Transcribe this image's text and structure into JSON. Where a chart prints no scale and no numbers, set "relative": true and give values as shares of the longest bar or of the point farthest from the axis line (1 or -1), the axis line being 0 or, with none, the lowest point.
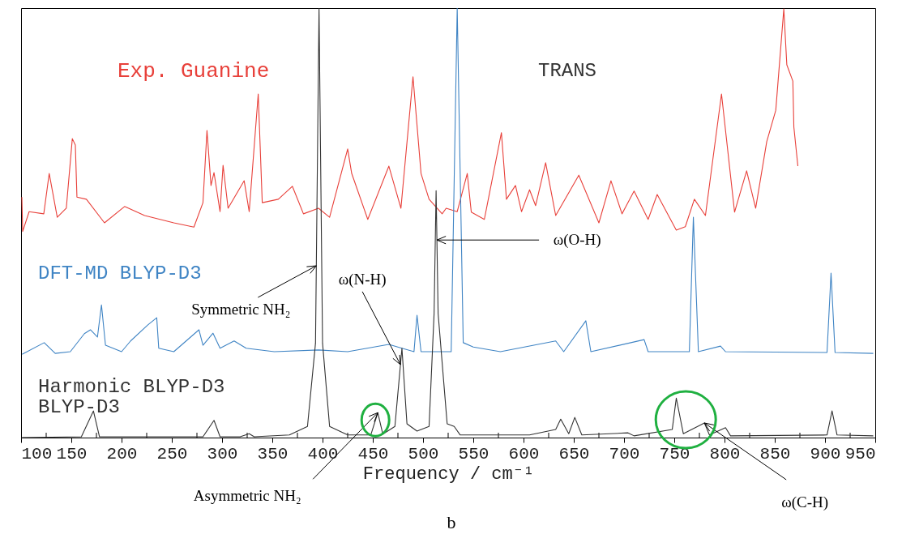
{
  "chart_data": {
    "type": "line",
    "relative": true,
    "xlabel": "Frequency / cm⁻¹",
    "xlim": [
      100,
      950
    ],
    "xticks": [
      100,
      {
        "value": 125,
        "label": null
      },
      150,
      {
        "value": 175,
        "label": null
      },
      200,
      {
        "value": 225,
        "label": null
      },
      250,
      {
        "value": 275,
        "label": null
      },
      300,
      {
        "value": 325,
        "label": null
      },
      350,
      {
        "value": 375,
        "label": null
      },
      400,
      {
        "value": 425,
        "label": null
      },
      450,
      {
        "value": 475,
        "label": null
      },
      500,
      {
        "value": 525,
        "label": null
      },
      550,
      {
        "value": 575,
        "label": null
      },
      600,
      {
        "value": 625,
        "label": null
      },
      650,
      {
        "value": 675,
        "label": null
      },
      700,
      {
        "value": 725,
        "label": null
      },
      750,
      {
        "value": 775,
        "label": null
      },
      800,
      {
        "value": 825,
        "label": null
      },
      850,
      {
        "value": 875,
        "label": null
      },
      900,
      {
        "value": 925,
        "label": null
      },
      950
    ],
    "series": [
      {
        "name": "Exp. Guanine",
        "color": "#e8403a",
        "x": [
          100.8,
          101.6,
          108,
          122.6,
          128,
          136,
          145,
          151,
          154,
          155.6,
          165,
          183,
          203,
          223,
          252,
          272,
          281,
          285,
          289,
          292,
          298,
          301,
          306,
          322,
          327,
          336,
          340,
          356,
          370,
          381,
          396,
          407,
          425,
          429,
          445,
          466,
          478,
          490,
          498,
          506,
          519,
          523,
          534,
          544,
          548,
          561,
          578,
          583,
          592,
          598,
          606,
          612,
          622,
          632,
          655,
          675,
          687,
          698,
          710,
          724,
          733,
          752,
          761,
          770,
          781,
          797,
          810,
          822,
          831,
          842,
          851,
          859,
          862,
          868,
          869,
          873
        ],
        "values": [
          0.56,
          0.48,
          0.526,
          0.521,
          0.615,
          0.513,
          0.534,
          0.696,
          0.681,
          0.56,
          0.555,
          0.5,
          0.538,
          0.517,
          0.5,
          0.49,
          0.547,
          0.715,
          0.587,
          0.617,
          0.526,
          0.634,
          0.534,
          0.598,
          0.526,
          0.8,
          0.547,
          0.555,
          0.585,
          0.521,
          0.534,
          0.513,
          0.672,
          0.615,
          0.508,
          0.632,
          0.534,
          0.84,
          0.615,
          0.555,
          0.521,
          0.534,
          0.526,
          0.615,
          0.525,
          0.508,
          0.71,
          0.555,
          0.587,
          0.526,
          0.577,
          0.54,
          0.64,
          0.517,
          0.611,
          0.5,
          0.598,
          0.521,
          0.574,
          0.508,
          0.566,
          0.483,
          0.491,
          0.555,
          0.517,
          0.8,
          0.525,
          0.621,
          0.534,
          0.689,
          0.762,
          0.998,
          0.868,
          0.83,
          0.723,
          0.632
        ]
      },
      {
        "name": "DFT-MD BLYP-D3",
        "color": "#3f84c4",
        "x": [
          101,
          123,
          134,
          149,
          163,
          169,
          176,
          180,
          184,
          200,
          209,
          226,
          235,
          237,
          252,
          277,
          281,
          291,
          298,
          312,
          324,
          352,
          396,
          425,
          466,
          479,
          491,
          494,
          498,
          523,
          528,
          534,
          540,
          550,
          577,
          632,
          640,
          662,
          667,
          720,
          724,
          765,
          769,
          774,
          796,
          801,
          902,
          906,
          910,
          948
        ],
        "values": [
          0.194,
          0.221,
          0.196,
          0.2,
          0.242,
          0.251,
          0.234,
          0.309,
          0.215,
          0.2,
          0.225,
          0.262,
          0.279,
          0.208,
          0.2,
          0.251,
          0.215,
          0.243,
          0.208,
          0.225,
          0.208,
          0.2,
          0.204,
          0.2,
          0.217,
          0.208,
          0.2,
          0.285,
          0.2,
          0.2,
          0.2,
          1.0,
          0.221,
          0.211,
          0.2,
          0.225,
          0.2,
          0.272,
          0.2,
          0.228,
          0.2,
          0.2,
          0.513,
          0.2,
          0.213,
          0.2,
          0.198,
          0.383,
          0.198,
          0.196
        ]
      },
      {
        "name": "Harmonic BLYP-D3\nBLYP-D3",
        "color": "#333333",
        "x": [
          101,
          160,
          172,
          178,
          281,
          292,
          298,
          318,
          327,
          332,
          367,
          385,
          393,
          396.5,
          400,
          407,
          425,
          448,
          455,
          460,
          472,
          479,
          484,
          494,
          506,
          511,
          513,
          515,
          524,
          531,
          537,
          606,
          632,
          637,
          645,
          651,
          658,
          704,
          710,
          748,
          752,
          759,
          780,
          785,
          801,
          806,
          902,
          907,
          912,
          948
        ],
        "values": [
          0,
          0.002,
          0.062,
          0.002,
          0.002,
          0.04,
          0.002,
          0.002,
          0.009,
          0.002,
          0.006,
          0.026,
          0.22,
          1.0,
          0.22,
          0.026,
          0.006,
          0.006,
          0.058,
          0.008,
          0.026,
          0.208,
          0.032,
          0.015,
          0.026,
          0.289,
          0.575,
          0.289,
          0.032,
          0.026,
          0.006,
          0.006,
          0.019,
          0.043,
          0.009,
          0.047,
          0.006,
          0.011,
          0.004,
          0.019,
          0.092,
          0.009,
          0.034,
          0.006,
          0.023,
          0.004,
          0.006,
          0.062,
          0.006,
          0.004
        ]
      }
    ],
    "annotations": [
      {
        "text": "Symmetric NH₂",
        "x": 393.8,
        "y": 0.4
      },
      {
        "text": "ω(N-H)",
        "x": 477.5,
        "y": 0.17
      },
      {
        "text": "ω(O-H)",
        "x": 513.8,
        "y": 0.46
      },
      {
        "text": "Asymmetric NH₂",
        "x": 455,
        "y": 0.058
      },
      {
        "text": "ω(C-H)",
        "x": 780,
        "y": 0.034
      },
      "TRANS",
      "b"
    ]
  }
}
